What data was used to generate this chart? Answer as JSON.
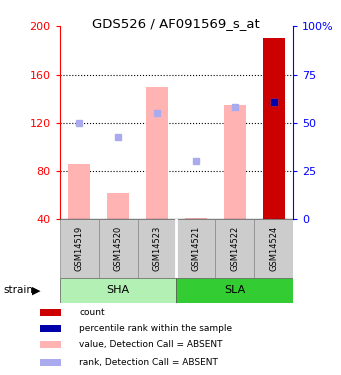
{
  "title": "GDS526 / AF091569_s_at",
  "samples": [
    "GSM14519",
    "GSM14520",
    "GSM14523",
    "GSM14521",
    "GSM14522",
    "GSM14524"
  ],
  "ylim_left": [
    40,
    200
  ],
  "ylim_right": [
    0,
    100
  ],
  "left_ticks": [
    40,
    80,
    120,
    160,
    200
  ],
  "right_ticks": [
    0,
    25,
    50,
    75,
    100
  ],
  "left_tick_labels": [
    "40",
    "80",
    "120",
    "160",
    "200"
  ],
  "right_tick_labels": [
    "0",
    "25",
    "50",
    "75",
    "100%"
  ],
  "value_bars": [
    86,
    62,
    150,
    41,
    135,
    190
  ],
  "value_bar_color": "#ffb3b3",
  "rank_dots": [
    120,
    108,
    128,
    88,
    133,
    137
  ],
  "rank_dot_color": "#aaaaee",
  "count_bar_sample_idx": 5,
  "count_bar_color": "#cc0000",
  "percentile_dot_sample_idx": 5,
  "percentile_dot_value": 137,
  "percentile_dot_color": "#0000aa",
  "bar_bottom": 40,
  "sha_color": "#b3f0b3",
  "sla_color": "#33cc33",
  "legend_items": [
    {
      "label": "count",
      "color": "#cc0000"
    },
    {
      "label": "percentile rank within the sample",
      "color": "#0000aa"
    },
    {
      "label": "value, Detection Call = ABSENT",
      "color": "#ffb3b3"
    },
    {
      "label": "rank, Detection Call = ABSENT",
      "color": "#aaaaee"
    }
  ]
}
